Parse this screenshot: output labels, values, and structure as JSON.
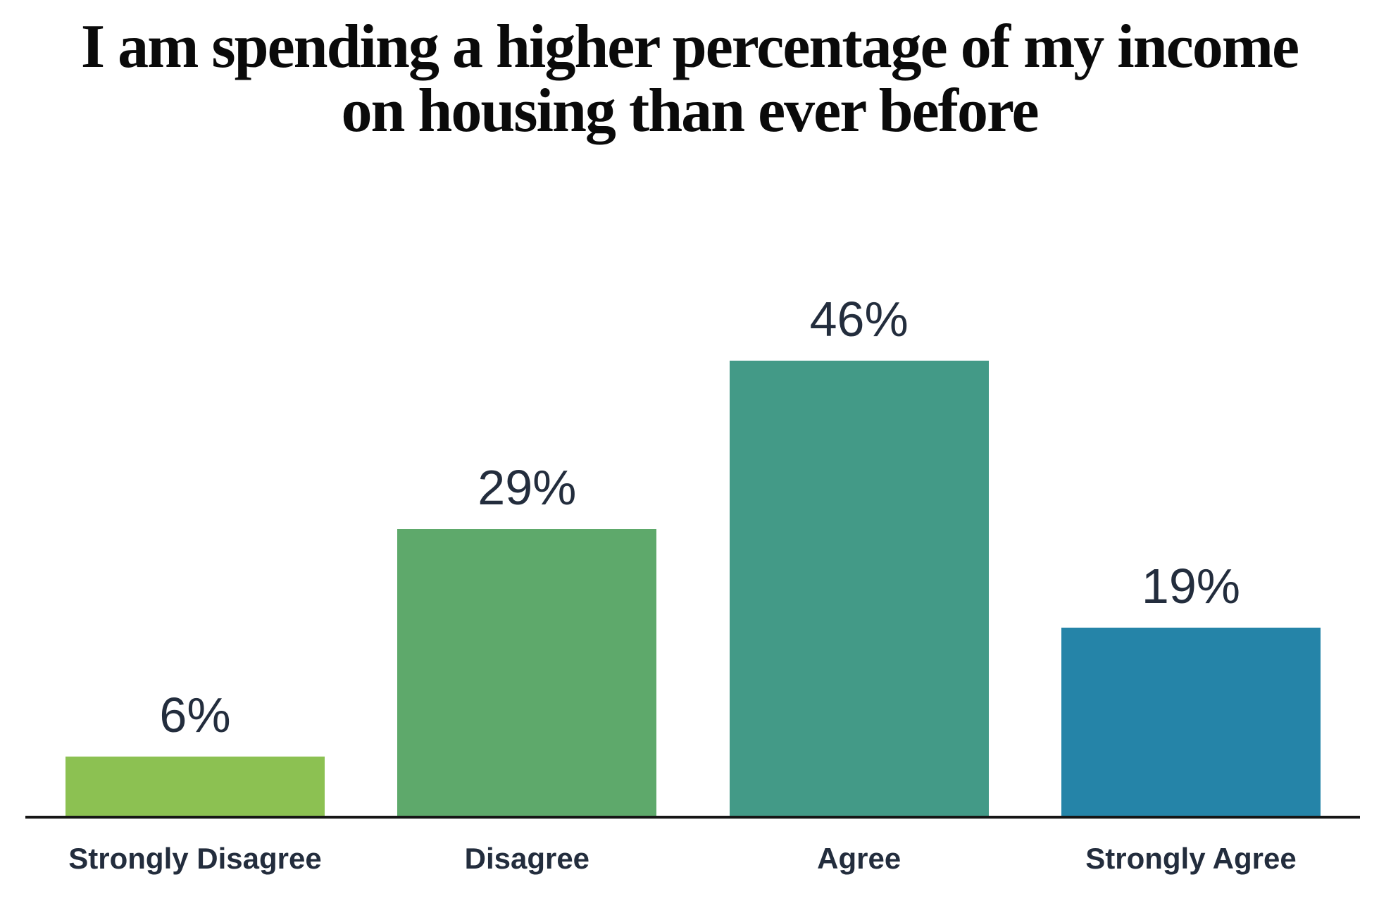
{
  "chart_data": {
    "type": "bar",
    "orientation": "vertical",
    "title": "I am spending a higher percentage of my income on housing than ever before",
    "title_lines": [
      "I am spending a higher percentage of my income",
      "on housing than ever before"
    ],
    "categories": [
      "Strongly Disagree",
      "Disagree",
      "Agree",
      "Strongly Agree"
    ],
    "values": [
      6,
      29,
      46,
      19
    ],
    "value_labels": [
      "6%",
      "29%",
      "46%",
      "19%"
    ],
    "bar_colors": [
      "#8CC152",
      "#5EA96B",
      "#439A87",
      "#2584A8"
    ],
    "title_color": "#0A0A0A",
    "label_color": "#232D3D",
    "axis_color": "#161616",
    "background_color": "#FFFFFF",
    "grid": false,
    "legend": false
  }
}
